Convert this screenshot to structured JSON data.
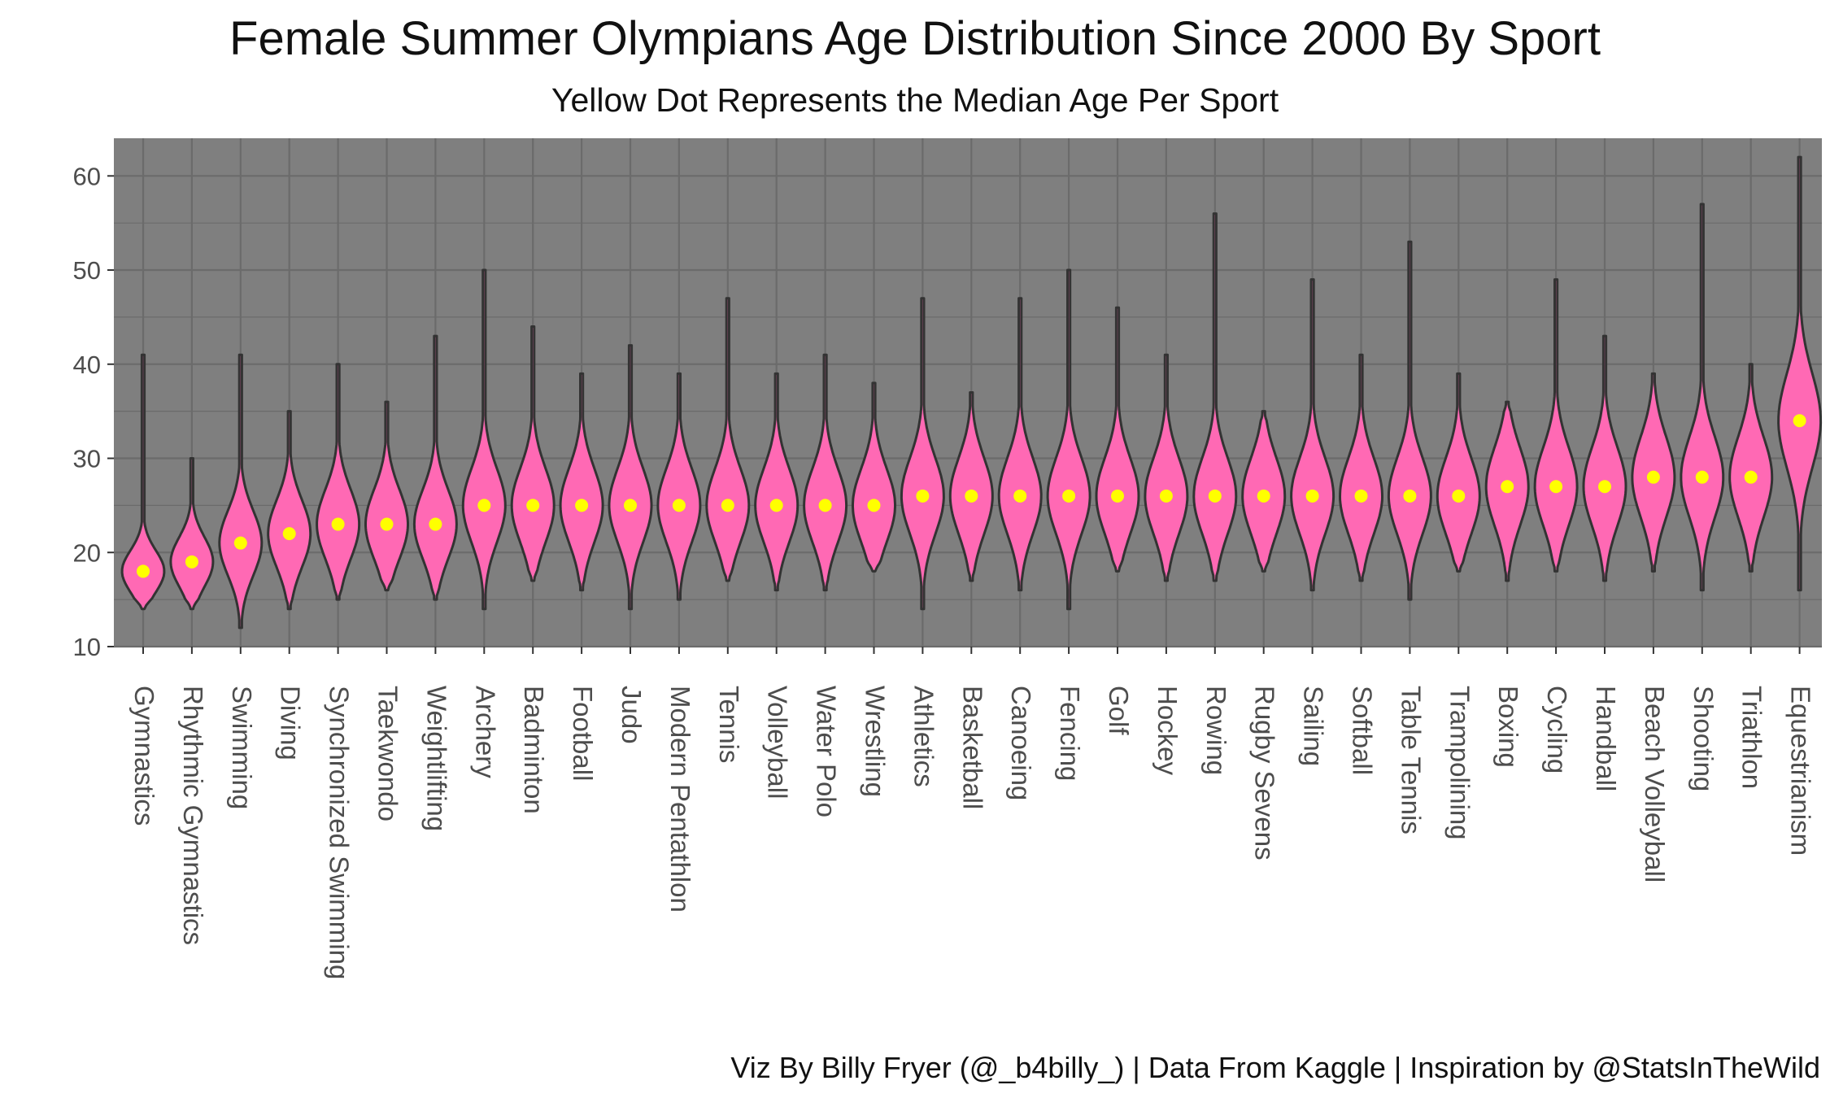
{
  "title": "Female Summer Olympians Age Distribution Since 2000 By Sport",
  "subtitle": "Yellow Dot Represents the Median Age Per Sport",
  "caption": "Viz By Billy Fryer (@_b4billy_) | Data From Kaggle | Inspiration by @StatsInTheWild",
  "colors": {
    "panel": "#7f7f7f",
    "grid": "#6b6b6b",
    "violin_fill": "#ff69b4",
    "violin_stroke": "#333333",
    "median_dot": "#ffff00",
    "tick_text": "#4d4d4d"
  },
  "chart_data": {
    "type": "violin",
    "title": "Female Summer Olympians Age Distribution Since 2000 By Sport",
    "subtitle": "Yellow Dot Represents the Median Age Per Sport",
    "xlabel": "",
    "ylabel": "",
    "ylim": [
      10,
      64
    ],
    "yticks": [
      10,
      20,
      30,
      40,
      50,
      60
    ],
    "grid": true,
    "legend": "none",
    "categories": [
      "Gymnastics",
      "Rhythmic Gymnastics",
      "Swimming",
      "Diving",
      "Synchronized Swimming",
      "Taekwondo",
      "Weightlifting",
      "Archery",
      "Badminton",
      "Football",
      "Judo",
      "Modern Pentathlon",
      "Tennis",
      "Volleyball",
      "Water Polo",
      "Wrestling",
      "Athletics",
      "Basketball",
      "Canoeing",
      "Fencing",
      "Golf",
      "Hockey",
      "Rowing",
      "Rugby Sevens",
      "Sailing",
      "Softball",
      "Table Tennis",
      "Trampolining",
      "Boxing",
      "Cycling",
      "Handball",
      "Beach Volleyball",
      "Shooting",
      "Triathlon",
      "Equestrianism"
    ],
    "medians": [
      18,
      19,
      21,
      22,
      23,
      23,
      23,
      25,
      25,
      25,
      25,
      25,
      25,
      25,
      25,
      25,
      26,
      26,
      26,
      26,
      26,
      26,
      26,
      26,
      26,
      26,
      26,
      26,
      27,
      27,
      27,
      28,
      28,
      28,
      34
    ],
    "min": [
      14,
      14,
      12,
      14,
      15,
      16,
      15,
      14,
      17,
      16,
      14,
      15,
      17,
      16,
      16,
      18,
      14,
      17,
      16,
      14,
      18,
      17,
      17,
      18,
      16,
      17,
      15,
      18,
      17,
      18,
      17,
      18,
      16,
      18,
      16
    ],
    "max": [
      41,
      30,
      41,
      35,
      40,
      36,
      43,
      50,
      44,
      39,
      42,
      39,
      47,
      39,
      41,
      38,
      47,
      37,
      47,
      50,
      46,
      41,
      56,
      35,
      49,
      41,
      53,
      39,
      36,
      49,
      43,
      39,
      57,
      40,
      62
    ]
  }
}
